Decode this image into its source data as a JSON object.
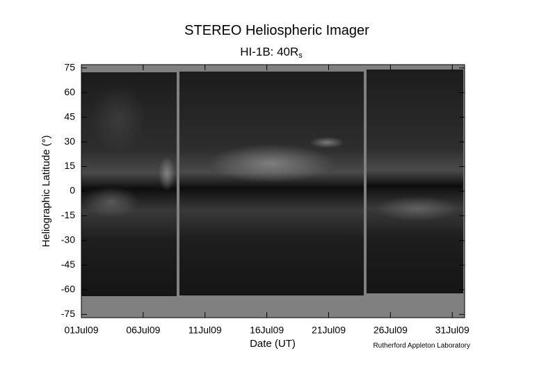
{
  "chart_data": {
    "type": "image",
    "title": "STEREO Heliospheric Imager",
    "subtitle": "HI-1B: 40R",
    "subtitle_subscript": "s",
    "x_label": "Date (UT)",
    "y_label": "Heliographic Latitude (°)",
    "credit": "Rutherford Appleton Laboratory",
    "xlim": [
      1,
      32
    ],
    "xticks": [
      {
        "value": 1,
        "label": "01Jul09"
      },
      {
        "value": 6,
        "label": "06Jul09"
      },
      {
        "value": 11,
        "label": "11Jul09"
      },
      {
        "value": 16,
        "label": "16Jul09"
      },
      {
        "value": 21,
        "label": "21Jul09"
      },
      {
        "value": 26,
        "label": "26Jul09"
      },
      {
        "value": 31,
        "label": "31Jul09"
      }
    ],
    "ylim": [
      -77,
      77
    ],
    "yticks": [
      -75,
      -60,
      -45,
      -30,
      -15,
      0,
      15,
      30,
      45,
      60,
      75
    ]
  }
}
